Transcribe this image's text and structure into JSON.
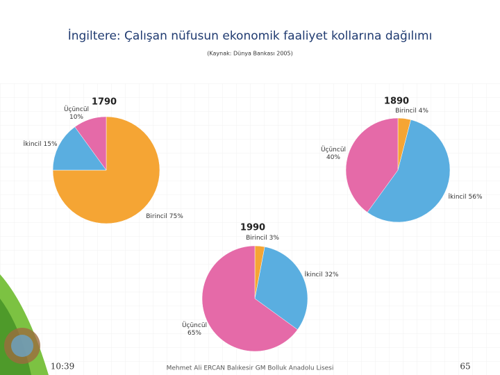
{
  "slide": {
    "title": "İngiltere: Çalışan nüfusun ekonomik faaliyet kollarına dağılımı",
    "subtitle": "(Kaynak: Dünya Bankası 2005)",
    "time": "10:39",
    "author": "Mehmet Ali ERCAN  Balıkesir GM Bolluk Anadolu Lisesi",
    "page": "65"
  },
  "chart_data": [
    {
      "type": "pie",
      "title": "1790",
      "categories": [
        "Birincil",
        "İkincil",
        "Üçüncül"
      ],
      "values": [
        75,
        15,
        10
      ],
      "value_labels": [
        "75%",
        "15%",
        "10%"
      ],
      "colors": [
        "#f5a534",
        "#5aaee0",
        "#e56aa8"
      ]
    },
    {
      "type": "pie",
      "title": "1890",
      "categories": [
        "Birincil",
        "İkincil",
        "Üçüncül"
      ],
      "values": [
        4,
        56,
        40
      ],
      "value_labels": [
        "4%",
        "56%",
        "40%"
      ],
      "colors": [
        "#f5a534",
        "#5aaee0",
        "#e56aa8"
      ]
    },
    {
      "type": "pie",
      "title": "1990",
      "categories": [
        "Birincil",
        "İkincil",
        "Üçüncül"
      ],
      "values": [
        3,
        32,
        65
      ],
      "value_labels": [
        "3%",
        "32%",
        "65%"
      ],
      "colors": [
        "#f5a534",
        "#5aaee0",
        "#e56aa8"
      ]
    }
  ]
}
